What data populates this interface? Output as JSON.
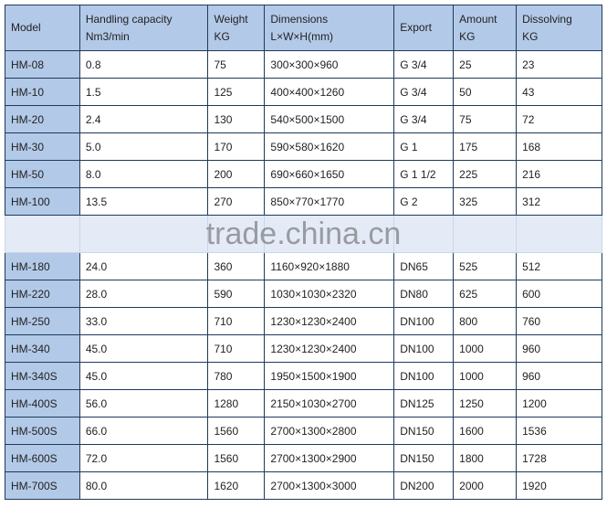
{
  "headers": [
    [
      "Model",
      ""
    ],
    [
      "Handling capacity",
      "Nm3/min"
    ],
    [
      "Weight",
      "KG"
    ],
    [
      "Dimensions",
      "L×W×H(mm)"
    ],
    [
      "Export",
      ""
    ],
    [
      "Amount",
      "KG"
    ],
    [
      "Dissolving",
      "KG"
    ]
  ],
  "rows": [
    [
      "HM-08",
      "0.8",
      "75",
      "300×300×960",
      "G 3/4",
      "25",
      "23"
    ],
    [
      "HM-10",
      "1.5",
      "125",
      "400×400×1260",
      "G 3/4",
      "50",
      "43"
    ],
    [
      "HM-20",
      "2.4",
      "130",
      "540×500×1500",
      "G 3/4",
      "75",
      "72"
    ],
    [
      "HM-30",
      "5.0",
      "170",
      "590×580×1620",
      "G 1",
      "175",
      "168"
    ],
    [
      "HM-50",
      "8.0",
      "200",
      "690×660×1650",
      "G 1 1/2",
      "225",
      "216"
    ],
    [
      "HM-100",
      "13.5",
      "270",
      "850×770×1770",
      "G 2",
      "325",
      "312"
    ],
    [
      "",
      "",
      "",
      "",
      "",
      "",
      ""
    ],
    [
      "HM-180",
      "24.0",
      "360",
      "1160×920×1880",
      "DN65",
      "525",
      "512"
    ],
    [
      "HM-220",
      "28.0",
      "590",
      "1030×1030×2320",
      "DN80",
      "625",
      "600"
    ],
    [
      "HM-250",
      "33.0",
      "710",
      "1230×1230×2400",
      "DN100",
      "800",
      "760"
    ],
    [
      "HM-340",
      "45.0",
      "710",
      "1230×1230×2400",
      "DN100",
      "1000",
      "960"
    ],
    [
      "HM-340S",
      "45.0",
      "780",
      "1950×1500×1900",
      "DN100",
      "1000",
      "960"
    ],
    [
      "HM-400S",
      "56.0",
      "1280",
      "2150×1030×2700",
      "DN125",
      "1250",
      "1200"
    ],
    [
      "HM-500S",
      "66.0",
      "1560",
      "2700×1300×2800",
      "DN150",
      "1600",
      "1536"
    ],
    [
      "HM-600S",
      "72.0",
      "1560",
      "2700×1300×2900",
      "DN150",
      "1800",
      "1728"
    ],
    [
      "HM-700S",
      "80.0",
      "1620",
      "2700×1300×3000",
      "DN200",
      "2000",
      "1920"
    ]
  ],
  "watermark": "trade.china.cn"
}
